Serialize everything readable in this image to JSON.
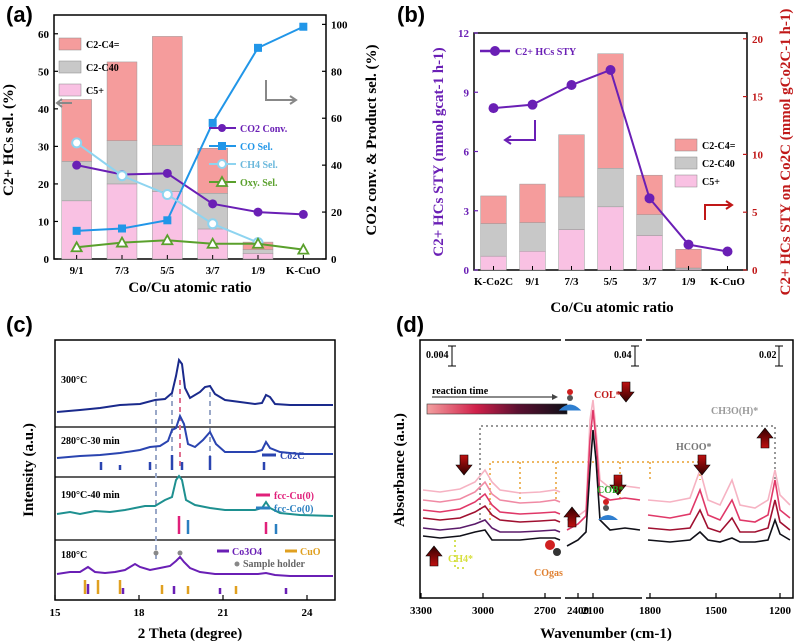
{
  "chart_data": [
    {
      "panel": "a",
      "type": "bar",
      "panel_label": "(a)",
      "categories": [
        "9/1",
        "7/3",
        "5/5",
        "3/7",
        "1/9",
        "K-CuO"
      ],
      "xlabel": "Co/Cu atomic ratio",
      "ylabel": "C2+ HCs sel. (%)",
      "ylabel2": "CO2 conv. & Product sel. (%)",
      "ylim": [
        0,
        65
      ],
      "ylim2": [
        0,
        104
      ],
      "yticks": [
        "0",
        "10",
        "20",
        "30",
        "40",
        "50",
        "60"
      ],
      "y2ticks": [
        "0",
        "20",
        "40",
        "60",
        "80",
        "100"
      ],
      "bar_series": [
        {
          "name": "C5+",
          "color": "#f9c1e3",
          "values": [
            15.5,
            20,
            18,
            8,
            1.5,
            0
          ]
        },
        {
          "name": "C2-C4 0",
          "color": "#c8c8c8",
          "values": [
            10.5,
            11.5,
            12.3,
            9.5,
            1,
            0
          ]
        },
        {
          "name": "C2-C4 =",
          "color": "#f59c9c",
          "values": [
            16.5,
            21,
            29,
            12,
            2,
            0
          ]
        }
      ],
      "line_series": [
        {
          "name": "CO2 Conv.",
          "color": "#6a1fb5",
          "marker": "circle",
          "values": [
            40,
            36,
            36.5,
            23.5,
            20,
            19
          ]
        },
        {
          "name": "CO Sel.",
          "color": "#2196e8",
          "marker": "square",
          "values": [
            12,
            13,
            16.5,
            58,
            90,
            99
          ]
        },
        {
          "name": "CH4 Sel.",
          "color": "#8ed4f0",
          "marker": "open-circle",
          "values": [
            49.5,
            35.5,
            27.5,
            15,
            7,
            null
          ]
        },
        {
          "name": "Oxy. Sel.",
          "color": "#5aa02c",
          "marker": "open-triangle",
          "values": [
            5,
            7,
            8,
            6.5,
            6.5,
            4
          ]
        }
      ],
      "legend_bar": [
        "C2-C4=",
        "C2-C40",
        "C5+"
      ],
      "legend_line": [
        "CO2 Conv.",
        "CO Sel.",
        "CH4 Sel.",
        "Oxy. Sel."
      ]
    },
    {
      "panel": "b",
      "type": "bar",
      "panel_label": "(b)",
      "categories": [
        "K-Co2C",
        "9/1",
        "7/3",
        "5/5",
        "3/7",
        "1/9",
        "K-CuO"
      ],
      "xlabel": "Co/Cu atomic ratio",
      "ylabel": "C2+ HCs STY (mmol gcat-1 h-1)",
      "ylabel2": "C2+ HCs STY on Co2C (mmol gCo2C-1 h-1)",
      "ylim": [
        0,
        12
      ],
      "ylim2": [
        0,
        20.5
      ],
      "yticks": [
        "0",
        "3",
        "6",
        "9",
        "12"
      ],
      "y2ticks": [
        "0",
        "5",
        "10",
        "15",
        "20"
      ],
      "bar_series": [
        {
          "name": "C5+",
          "color": "#f9c1e3",
          "values": [
            0.7,
            0.95,
            2.05,
            3.2,
            1.75,
            0.05,
            0
          ]
        },
        {
          "name": "C2-C4 0",
          "color": "#c8c8c8",
          "values": [
            1.65,
            1.45,
            1.65,
            1.95,
            1.05,
            0.05,
            0
          ]
        },
        {
          "name": "C2-C4 =",
          "color": "#f59c9c",
          "values": [
            1.4,
            1.95,
            3.15,
            5.8,
            2.0,
            0.95,
            0
          ]
        }
      ],
      "line_series": [
        {
          "name": "C2+ HCs STY",
          "color": "#6a1fb5",
          "values": [
            14,
            14.3,
            16,
            17.3,
            6.2,
            2.2,
            1.6
          ]
        }
      ],
      "legend_bar": [
        "C2-C4=",
        "C2-C40",
        "C5+"
      ],
      "legend_line": [
        "C2+ HCs STY"
      ]
    },
    {
      "panel": "c",
      "type": "line",
      "panel_label": "(c)",
      "xlabel": "2 Theta (degree)",
      "ylabel": "Intensity (a.u.)",
      "xlim": [
        15,
        25
      ],
      "xticks": [
        "15",
        "18",
        "21",
        "24"
      ],
      "series": [
        {
          "name": "300°C",
          "color": "#1a2a8c"
        },
        {
          "name": "280°C-30 min",
          "color": "#2a44b0"
        },
        {
          "name": "190°C-40 min",
          "color": "#1e9090"
        },
        {
          "name": "180°C",
          "color": "#6a1fb5"
        }
      ],
      "reference_patterns": [
        "Co2C",
        "fcc-Cu(0)",
        "fcc-Co(0)",
        "Co3O4",
        "CuO",
        "Sample holder"
      ]
    },
    {
      "panel": "d",
      "type": "line",
      "panel_label": "(d)",
      "xlabel": "Wavenumber (cm-1)",
      "ylabel": "Absorbance (a.u.)",
      "xticks": [
        "3300",
        "3000",
        "2700",
        "2400",
        "2100",
        "1800",
        "1500",
        "1200"
      ],
      "scale_bars": [
        "0.004",
        "0.04",
        "0.02"
      ],
      "reaction_time_label": "reaction time",
      "annotations": [
        "COL*",
        "COB*",
        "HCOO*",
        "CH3O(H)*",
        "CH4*",
        "COgas"
      ]
    }
  ]
}
